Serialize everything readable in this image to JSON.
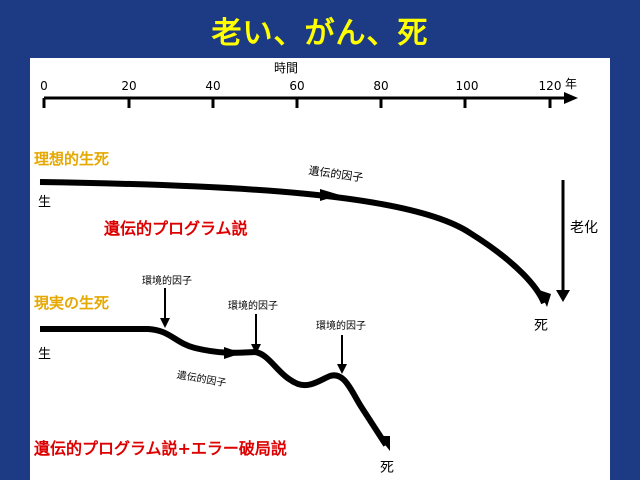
{
  "title": "老い、がん、死",
  "axis": {
    "label": "時間",
    "unit": "年",
    "ticks": [
      "0",
      "20",
      "40",
      "60",
      "80",
      "100",
      "120"
    ]
  },
  "ideal": {
    "heading": "理想的生死",
    "start": "生",
    "end": "死",
    "factor": "遺伝的因子",
    "theory": "遺伝的プログラム説",
    "aging": "老化"
  },
  "real": {
    "heading": "現実の生死",
    "start": "生",
    "end": "死",
    "env_factor_1": "環境的因子",
    "env_factor_2": "環境的因子",
    "env_factor_3": "環境的因子",
    "genetic_factor": "遺伝的因子",
    "theory": "遺伝的プログラム説+エラー破局説"
  },
  "colors": {
    "background": "#1d3a85",
    "title": "#ffff00",
    "heading": "#e6a800",
    "theory": "#dd0000"
  }
}
